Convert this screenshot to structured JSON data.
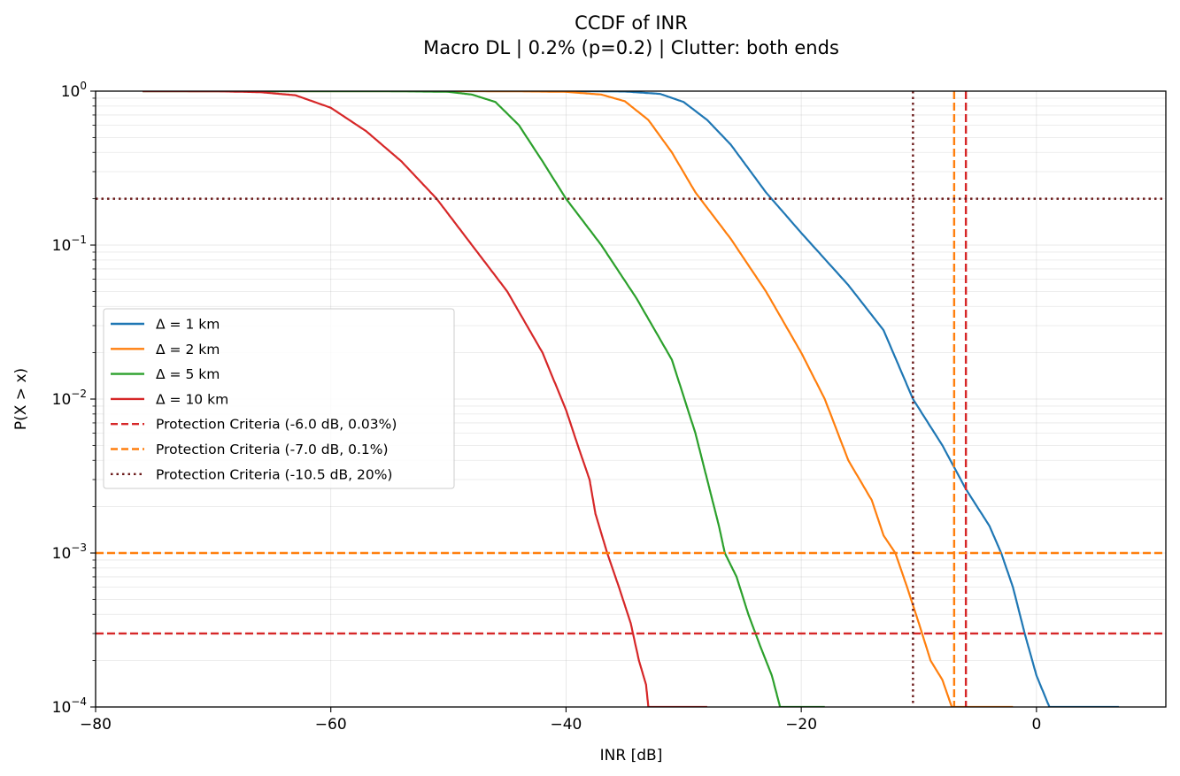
{
  "chart_data": {
    "type": "line",
    "title": "CCDF of INR",
    "subtitle": "Macro DL | 0.2% (p=0.2) | Clutter: both ends",
    "xlabel": "INR [dB]",
    "ylabel": "P(X > x)",
    "xlim": [
      -80,
      11
    ],
    "ylim": [
      0.0001,
      1
    ],
    "yscale": "log",
    "grid": true,
    "legend_position": "center-left",
    "xticks": [
      -80,
      -60,
      -40,
      -20,
      0
    ],
    "xtick_labels": [
      "−80",
      "−60",
      "−40",
      "−20",
      "0"
    ],
    "yticks": [
      {
        "value": 1,
        "base": "10",
        "exp": "0"
      },
      {
        "value": 0.1,
        "base": "10",
        "exp": "−1"
      },
      {
        "value": 0.01,
        "base": "10",
        "exp": "−2"
      },
      {
        "value": 0.001,
        "base": "10",
        "exp": "−3"
      },
      {
        "value": 0.0001,
        "base": "10",
        "exp": "−4"
      }
    ],
    "series": [
      {
        "name": "Δ = 1 km",
        "color": "#1f77b4",
        "style": "solid",
        "points": [
          [
            -76,
            1
          ],
          [
            -50,
            1
          ],
          [
            -40,
            0.9995
          ],
          [
            -35,
            0.995
          ],
          [
            -32,
            0.96
          ],
          [
            -30,
            0.85
          ],
          [
            -28,
            0.65
          ],
          [
            -26,
            0.45
          ],
          [
            -23,
            0.22
          ],
          [
            -20,
            0.12
          ],
          [
            -16,
            0.055
          ],
          [
            -13,
            0.028
          ],
          [
            -10.5,
            0.01
          ],
          [
            -8,
            0.005
          ],
          [
            -6,
            0.0026
          ],
          [
            -4,
            0.0015
          ],
          [
            -3,
            0.001
          ],
          [
            -2,
            0.0006
          ],
          [
            -1,
            0.0003
          ],
          [
            0,
            0.00016
          ],
          [
            1.1,
            0.0001
          ],
          [
            7,
            0.0001
          ]
        ]
      },
      {
        "name": "Δ = 2 km",
        "color": "#ff7f0e",
        "style": "solid",
        "points": [
          [
            -76,
            1
          ],
          [
            -50,
            1
          ],
          [
            -45,
            0.999
          ],
          [
            -40,
            0.99
          ],
          [
            -37,
            0.95
          ],
          [
            -35,
            0.86
          ],
          [
            -33,
            0.65
          ],
          [
            -31,
            0.4
          ],
          [
            -29,
            0.22
          ],
          [
            -26,
            0.11
          ],
          [
            -23,
            0.05
          ],
          [
            -20,
            0.02
          ],
          [
            -18,
            0.01
          ],
          [
            -16,
            0.004
          ],
          [
            -14,
            0.0022
          ],
          [
            -13,
            0.0013
          ],
          [
            -12,
            0.001
          ],
          [
            -11,
            0.0006
          ],
          [
            -10,
            0.00035
          ],
          [
            -9,
            0.0002
          ],
          [
            -8,
            0.00015
          ],
          [
            -7.2,
            0.0001
          ],
          [
            -2,
            0.0001
          ]
        ]
      },
      {
        "name": "Δ = 5 km",
        "color": "#2ca02c",
        "style": "solid",
        "points": [
          [
            -76,
            1
          ],
          [
            -55,
            0.9995
          ],
          [
            -50,
            0.99
          ],
          [
            -48,
            0.95
          ],
          [
            -46,
            0.85
          ],
          [
            -44,
            0.6
          ],
          [
            -42,
            0.35
          ],
          [
            -40,
            0.2
          ],
          [
            -37,
            0.1
          ],
          [
            -34,
            0.045
          ],
          [
            -31,
            0.018
          ],
          [
            -29,
            0.006
          ],
          [
            -28,
            0.003
          ],
          [
            -27,
            0.0015
          ],
          [
            -26.5,
            0.001
          ],
          [
            -25.5,
            0.0007
          ],
          [
            -24.5,
            0.0004
          ],
          [
            -23.5,
            0.00025
          ],
          [
            -22.5,
            0.00016
          ],
          [
            -21.8,
            0.0001
          ],
          [
            -18,
            0.0001
          ]
        ]
      },
      {
        "name": "Δ = 10 km",
        "color": "#d62728",
        "style": "solid",
        "points": [
          [
            -76,
            1
          ],
          [
            -70,
            0.999
          ],
          [
            -66,
            0.985
          ],
          [
            -63,
            0.94
          ],
          [
            -60,
            0.78
          ],
          [
            -57,
            0.55
          ],
          [
            -54,
            0.35
          ],
          [
            -51,
            0.2
          ],
          [
            -48,
            0.1
          ],
          [
            -45,
            0.05
          ],
          [
            -42,
            0.02
          ],
          [
            -40,
            0.0085
          ],
          [
            -39,
            0.005
          ],
          [
            -38,
            0.003
          ],
          [
            -37.5,
            0.0018
          ],
          [
            -36.5,
            0.001
          ],
          [
            -35.5,
            0.0006
          ],
          [
            -34.5,
            0.00035
          ],
          [
            -33.8,
            0.0002
          ],
          [
            -33.2,
            0.00014
          ],
          [
            -33,
            0.0001
          ],
          [
            -28,
            0.0001
          ]
        ]
      },
      {
        "name": "Protection Criteria (-6.0 dB, 0.03%)",
        "color": "#d62728",
        "style": "dashed",
        "threshold_x": -6.0,
        "threshold_y": 0.0003
      },
      {
        "name": "Protection Criteria (-7.0 dB, 0.1%)",
        "color": "#ff7f0e",
        "style": "dashed",
        "threshold_x": -7.0,
        "threshold_y": 0.001
      },
      {
        "name": "Protection Criteria (-10.5 dB, 20%)",
        "color": "#6b1a1a",
        "style": "dotted",
        "threshold_x": -10.5,
        "threshold_y": 0.2
      }
    ]
  }
}
